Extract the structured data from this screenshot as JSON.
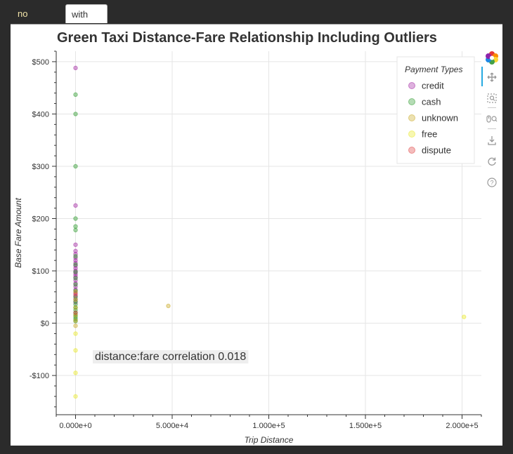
{
  "tabs": [
    {
      "label": "no outliers",
      "active": false
    },
    {
      "label": "with outliers",
      "active": true
    }
  ],
  "toolbar": {
    "logo": "bokeh-logo-icon",
    "tools": [
      "pan-icon",
      "box-zoom-icon",
      "wheel-zoom-icon",
      "save-icon",
      "reset-icon",
      "help-icon"
    ]
  },
  "chart_data": {
    "type": "scatter",
    "title": "Green Taxi Distance-Fare Relationship Including Outliers",
    "xlabel": "Trip Distance",
    "ylabel": "Base Fare Amount",
    "xlim": [
      -10000,
      210000
    ],
    "ylim": [
      -175,
      520
    ],
    "x_ticks": [
      0,
      50000,
      100000,
      150000,
      200000
    ],
    "x_tick_labels": [
      "0.000e+0",
      "5.000e+4",
      "1.000e+5",
      "1.500e+5",
      "2.000e+5"
    ],
    "y_ticks": [
      -100,
      0,
      100,
      200,
      300,
      400,
      500
    ],
    "y_tick_labels": [
      "-$100",
      "$0",
      "$100",
      "$200",
      "$300",
      "$400",
      "$500"
    ],
    "grid": true,
    "legend_title": "Payment Types",
    "legend_position": "top-right",
    "annotation": "distance:fare correlation 0.018",
    "series": [
      {
        "name": "credit",
        "color": "#a020a0",
        "x": [
          0,
          0,
          0,
          0,
          0,
          0,
          0,
          0,
          0,
          0,
          0,
          0,
          0,
          0,
          0,
          0,
          0,
          0,
          0,
          0,
          0,
          0
        ],
        "y": [
          488,
          225,
          150,
          138,
          132,
          125,
          120,
          115,
          110,
          105,
          100,
          96,
          92,
          88,
          82,
          76,
          70,
          64,
          58,
          52,
          46,
          40
        ]
      },
      {
        "name": "cash",
        "color": "#2a9a2a",
        "x": [
          0,
          0,
          0,
          0,
          0,
          0,
          0,
          0,
          0,
          0,
          0,
          0,
          0,
          0,
          0,
          0,
          0,
          0,
          0,
          0,
          0,
          0
        ],
        "y": [
          437,
          400,
          300,
          200,
          185,
          178,
          128,
          112,
          98,
          86,
          74,
          62,
          50,
          42,
          36,
          30,
          25,
          20,
          16,
          12,
          8,
          4
        ]
      },
      {
        "name": "unknown",
        "color": "#c8a820",
        "x": [
          48000,
          0,
          0,
          0,
          0,
          0,
          0
        ],
        "y": [
          33,
          60,
          45,
          30,
          15,
          5,
          -5
        ]
      },
      {
        "name": "free",
        "color": "#e8e820",
        "x": [
          201000,
          0,
          0,
          0,
          0
        ],
        "y": [
          12,
          -20,
          -52,
          -95,
          -140
        ]
      },
      {
        "name": "dispute",
        "color": "#e04040",
        "x": [
          0,
          0
        ],
        "y": [
          55,
          20
        ]
      }
    ]
  }
}
